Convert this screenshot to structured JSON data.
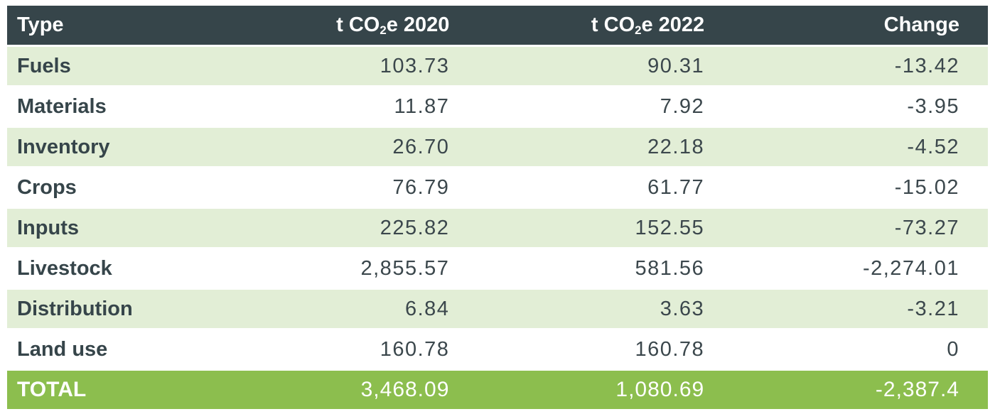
{
  "colors": {
    "header_bg": "#36454a",
    "row_green": "#e2eed6",
    "row_white": "#ffffff",
    "total_bg": "#8cbe4e",
    "header_text": "#ffffff",
    "label_text": "#36454a",
    "number_text": "#3b474c",
    "total_text": "#ffffff"
  },
  "header_display": {
    "col_type": "Type",
    "col_2020_pre": "t CO",
    "col_2020_sub": "2",
    "col_2020_post": "e 2020",
    "col_2022_pre": "t CO",
    "col_2022_sub": "2",
    "col_2022_post": "e 2022",
    "col_change": "Change"
  },
  "chart_data": {
    "type": "table",
    "columns": [
      "Type",
      "t CO₂e 2020",
      "t CO₂e 2022",
      "Change"
    ],
    "rows": [
      [
        "Fuels",
        "103.73",
        "90.31",
        "-13.42"
      ],
      [
        "Materials",
        "11.87",
        "7.92",
        "-3.95"
      ],
      [
        "Inventory",
        "26.70",
        "22.18",
        "-4.52"
      ],
      [
        "Crops",
        "76.79",
        "61.77",
        "-15.02"
      ],
      [
        "Inputs",
        "225.82",
        "152.55",
        "-73.27"
      ],
      [
        "Livestock",
        "2,855.57",
        "581.56",
        "-2,274.01"
      ],
      [
        "Distribution",
        "6.84",
        "3.63",
        "-3.21"
      ],
      [
        "Land use",
        "160.78",
        "160.78",
        "0"
      ]
    ],
    "total_row": [
      "TOTAL",
      "3,468.09",
      "1,080.69",
      "-2,387.4"
    ]
  }
}
